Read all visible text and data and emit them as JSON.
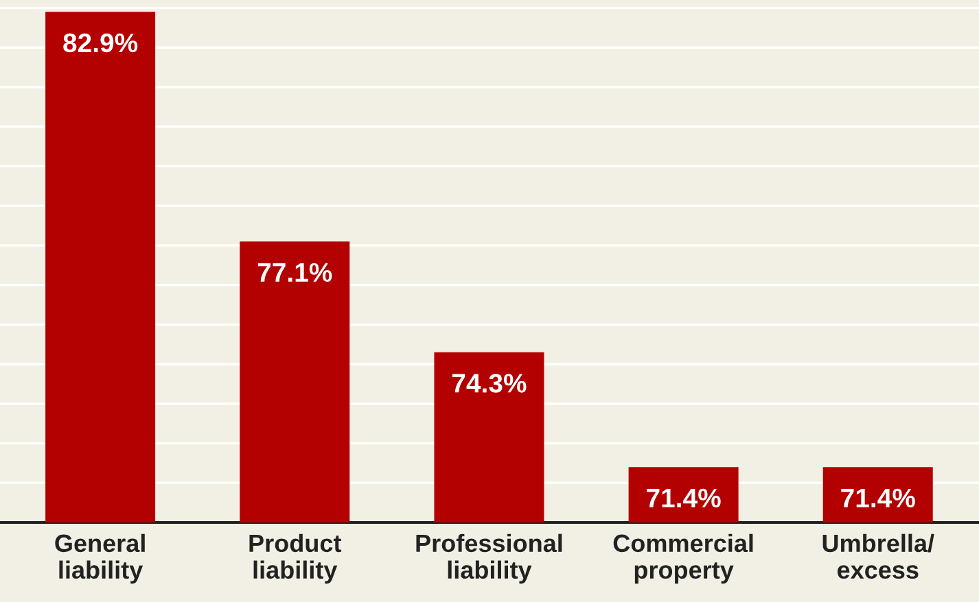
{
  "chart_data": {
    "type": "bar",
    "categories": [
      "General\nliability",
      "Product\nliability",
      "Professional\nliability",
      "Commercial\nproperty",
      "Umbrella/\nexcess"
    ],
    "values": [
      82.9,
      77.1,
      74.3,
      71.4,
      71.4
    ],
    "value_labels": [
      "82.9%",
      "77.1%",
      "74.3%",
      "71.4%",
      "71.4%"
    ],
    "color": "#b30000",
    "ylim": [
      70,
      83.2
    ],
    "yticks": [
      {
        "value": 70,
        "label": null
      },
      {
        "value": 71,
        "label": null
      },
      {
        "value": 72,
        "label": null
      },
      {
        "value": 73,
        "label": null
      },
      {
        "value": 74,
        "label": null
      },
      {
        "value": 75,
        "label": null
      },
      {
        "value": 76,
        "label": null
      },
      {
        "value": 77,
        "label": null
      },
      {
        "value": 78,
        "label": null
      },
      {
        "value": 79,
        "label": null
      },
      {
        "value": 80,
        "label": null
      },
      {
        "value": 81,
        "label": null
      },
      {
        "value": 82,
        "label": null
      },
      {
        "value": 83,
        "label": null
      }
    ],
    "grid": "y",
    "tick_labels": "x"
  }
}
